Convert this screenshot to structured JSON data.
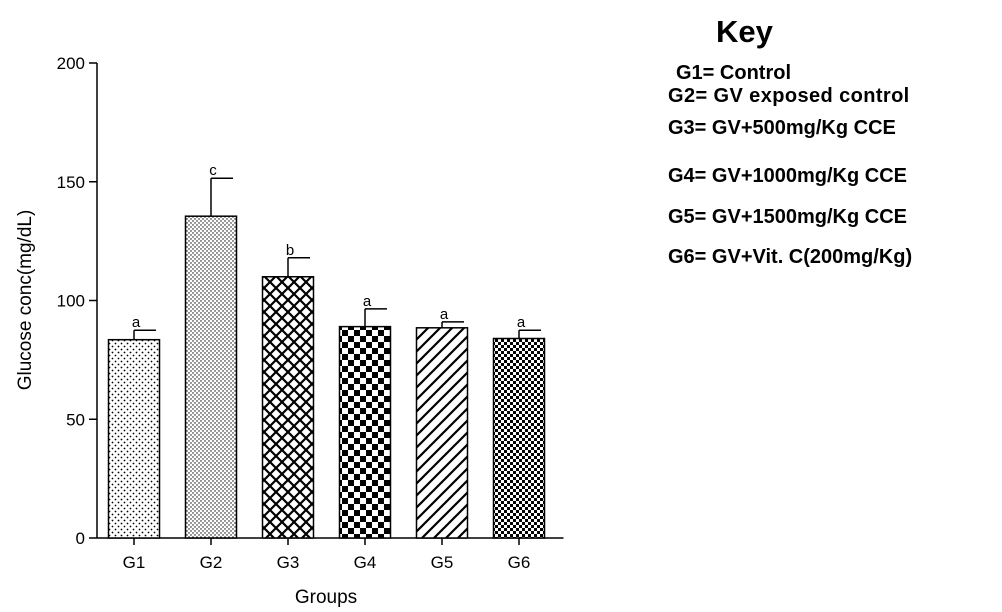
{
  "chart_data": {
    "type": "bar",
    "categories": [
      "G1",
      "G2",
      "G3",
      "G4",
      "G5",
      "G6"
    ],
    "values": [
      83.5,
      135.5,
      110,
      89,
      88.5,
      84
    ],
    "errors": [
      4,
      16,
      8,
      7.5,
      2.5,
      3.5
    ],
    "significance_letters": [
      "a",
      "c",
      "b",
      "a",
      "a",
      "a"
    ],
    "patterns": [
      "dots",
      "fine-dots",
      "crosshatch",
      "checker",
      "diagonal",
      "dense-checker"
    ],
    "xlabel": "Groups",
    "ylabel": "Glucose conc(mg/dL)",
    "ylim": [
      0,
      200
    ],
    "yticks": [
      0,
      50,
      100,
      150,
      200
    ],
    "grid": false,
    "legend": {
      "title": "Key",
      "placement": "right",
      "entries": [
        "G1= Control",
        "G2= GV exposed control",
        "G3= GV+500mg/Kg CCE",
        "G4= GV+1000mg/Kg CCE",
        "G5= GV+1500mg/Kg CCE",
        "G6= GV+Vit. C(200mg/Kg)"
      ]
    }
  }
}
